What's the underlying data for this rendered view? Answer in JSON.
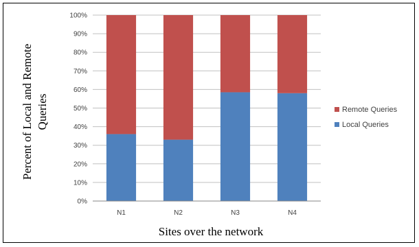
{
  "chart_data": {
    "type": "bar",
    "stacked": true,
    "categories": [
      "N1",
      "N2",
      "N3",
      "N4"
    ],
    "series": [
      {
        "name": "Local Queries",
        "color": "#4f81bd",
        "values": [
          36,
          33,
          58.5,
          58
        ]
      },
      {
        "name": "Remote Queries",
        "color": "#c0504d",
        "values": [
          64,
          67,
          41.5,
          42
        ]
      }
    ],
    "xlabel": "Sites over the network",
    "ylabel_lines": [
      "Percent of Local and Remote",
      "Queries"
    ],
    "ylim": [
      0,
      100
    ],
    "y_ticks": [
      "0%",
      "10%",
      "20%",
      "30%",
      "40%",
      "50%",
      "60%",
      "70%",
      "80%",
      "90%",
      "100%"
    ],
    "grid": true,
    "legend": [
      "Remote Queries",
      "Local Queries"
    ],
    "legend_position": "right",
    "grid_color": "#c0c0c0"
  }
}
